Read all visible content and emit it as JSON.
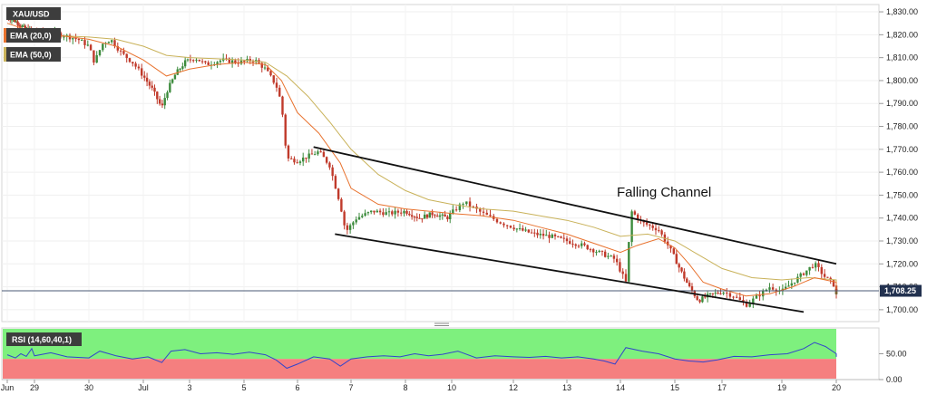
{
  "chart_data": [
    {
      "type": "candlestick",
      "title": "XAU/USD",
      "indicators": [
        {
          "name": "EMA (20,0)",
          "color": "#e8722e"
        },
        {
          "name": "EMA (50,0)",
          "color": "#c9b25a"
        }
      ],
      "x_labels": [
        "Jun",
        "29",
        "30",
        "Jul",
        "3",
        "5",
        "6",
        "7",
        "8",
        "10",
        "12",
        "13",
        "14",
        "15",
        "17",
        "19",
        "20"
      ],
      "y_ticks": [
        "1,830.00",
        "1,820.00",
        "1,810.00",
        "1,800.00",
        "1,790.00",
        "1,780.00",
        "1,770.00",
        "1,760.00",
        "1,750.00",
        "1,740.00",
        "1,730.00",
        "1,720.00",
        "1,710.00",
        "1,700.00"
      ],
      "ylim": [
        1696,
        1832
      ],
      "current_price": {
        "label": "1,708.25",
        "value": 1708.25
      },
      "annotations": [
        {
          "text": "Falling Channel"
        }
      ],
      "channel": {
        "upper": [
          [
            6.3,
            1771
          ],
          [
            16.0,
            1720
          ]
        ],
        "lower": [
          [
            6.7,
            1733
          ],
          [
            15.4,
            1699
          ]
        ]
      },
      "close_path": [
        [
          0.0,
          1828
        ],
        [
          0.3,
          1826
        ],
        [
          0.5,
          1824
        ],
        [
          0.7,
          1822
        ],
        [
          0.9,
          1822
        ],
        [
          1.2,
          1821
        ],
        [
          1.5,
          1820
        ],
        [
          1.8,
          1818
        ],
        [
          2.0,
          1815
        ],
        [
          2.1,
          1808
        ],
        [
          2.25,
          1816
        ],
        [
          2.4,
          1818
        ],
        [
          2.6,
          1812
        ],
        [
          2.8,
          1808
        ],
        [
          3.0,
          1802
        ],
        [
          3.2,
          1796
        ],
        [
          3.4,
          1788
        ],
        [
          3.5,
          1795
        ],
        [
          3.7,
          1803
        ],
        [
          3.9,
          1808
        ],
        [
          4.1,
          1810
        ],
        [
          4.3,
          1807
        ],
        [
          4.6,
          1809
        ],
        [
          4.9,
          1808
        ],
        [
          5.2,
          1809
        ],
        [
          5.4,
          1805
        ],
        [
          5.6,
          1798
        ],
        [
          5.7,
          1790
        ],
        [
          5.8,
          1766
        ],
        [
          6.0,
          1765
        ],
        [
          6.2,
          1767
        ],
        [
          6.4,
          1769
        ],
        [
          6.6,
          1763
        ],
        [
          6.8,
          1746
        ],
        [
          6.9,
          1734
        ],
        [
          7.1,
          1740
        ],
        [
          7.4,
          1743
        ],
        [
          7.7,
          1742
        ],
        [
          8.0,
          1743
        ],
        [
          8.3,
          1740
        ],
        [
          8.6,
          1742
        ],
        [
          8.9,
          1740
        ],
        [
          9.2,
          1747
        ],
        [
          9.5,
          1742
        ],
        [
          9.8,
          1738
        ],
        [
          10.1,
          1735
        ],
        [
          10.4,
          1733
        ],
        [
          10.7,
          1732
        ],
        [
          11.0,
          1730
        ],
        [
          11.3,
          1728
        ],
        [
          11.6,
          1725
        ],
        [
          11.9,
          1722
        ],
        [
          12.1,
          1712
        ],
        [
          12.2,
          1743
        ],
        [
          12.4,
          1738
        ],
        [
          12.7,
          1735
        ],
        [
          12.9,
          1727
        ],
        [
          13.1,
          1718
        ],
        [
          13.3,
          1710
        ],
        [
          13.5,
          1704
        ],
        [
          13.7,
          1706
        ],
        [
          14.0,
          1708
        ],
        [
          14.2,
          1706
        ],
        [
          14.4,
          1702
        ],
        [
          14.6,
          1706
        ],
        [
          14.8,
          1710
        ],
        [
          15.0,
          1708
        ],
        [
          15.2,
          1712
        ],
        [
          15.4,
          1716
        ],
        [
          15.6,
          1720
        ],
        [
          15.8,
          1714
        ],
        [
          16.0,
          1710
        ],
        [
          16.2,
          1708
        ],
        [
          16.4,
          1707.5
        ],
        [
          16.6,
          1708.25
        ]
      ],
      "ema20_path": [
        [
          0.0,
          1825
        ],
        [
          1.0,
          1821
        ],
        [
          2.0,
          1818
        ],
        [
          2.5,
          1815
        ],
        [
          3.0,
          1809
        ],
        [
          3.5,
          1802
        ],
        [
          4.0,
          1805
        ],
        [
          4.5,
          1807
        ],
        [
          5.0,
          1808
        ],
        [
          5.4,
          1807
        ],
        [
          5.7,
          1800
        ],
        [
          6.0,
          1786
        ],
        [
          6.4,
          1777
        ],
        [
          6.8,
          1764
        ],
        [
          7.0,
          1753
        ],
        [
          7.5,
          1746
        ],
        [
          8.0,
          1744
        ],
        [
          8.5,
          1743
        ],
        [
          9.0,
          1742
        ],
        [
          9.5,
          1741
        ],
        [
          10.0,
          1739
        ],
        [
          10.5,
          1736
        ],
        [
          11.0,
          1733
        ],
        [
          11.5,
          1729
        ],
        [
          12.0,
          1725
        ],
        [
          12.3,
          1728
        ],
        [
          12.7,
          1731
        ],
        [
          13.0,
          1727
        ],
        [
          13.3,
          1720
        ],
        [
          13.6,
          1712
        ],
        [
          14.0,
          1709
        ],
        [
          14.4,
          1706
        ],
        [
          14.8,
          1707
        ],
        [
          15.2,
          1710
        ],
        [
          15.6,
          1714
        ],
        [
          16.0,
          1712
        ],
        [
          16.4,
          1710
        ],
        [
          16.6,
          1709
        ]
      ],
      "ema50_path": [
        [
          0.0,
          1822
        ],
        [
          1.0,
          1820
        ],
        [
          2.0,
          1819
        ],
        [
          2.5,
          1818
        ],
        [
          3.0,
          1815
        ],
        [
          3.5,
          1811
        ],
        [
          4.0,
          1810
        ],
        [
          4.5,
          1809.5
        ],
        [
          5.0,
          1809
        ],
        [
          5.4,
          1808
        ],
        [
          5.8,
          1802
        ],
        [
          6.2,
          1793
        ],
        [
          6.6,
          1782
        ],
        [
          7.0,
          1770
        ],
        [
          7.5,
          1759
        ],
        [
          8.0,
          1752
        ],
        [
          8.5,
          1748
        ],
        [
          9.0,
          1746
        ],
        [
          9.5,
          1744
        ],
        [
          10.0,
          1743
        ],
        [
          10.5,
          1741
        ],
        [
          11.0,
          1739
        ],
        [
          11.5,
          1736
        ],
        [
          12.0,
          1732
        ],
        [
          12.5,
          1733
        ],
        [
          13.0,
          1730
        ],
        [
          13.5,
          1724
        ],
        [
          14.0,
          1718
        ],
        [
          14.5,
          1714
        ],
        [
          15.0,
          1713
        ],
        [
          15.5,
          1714
        ],
        [
          16.0,
          1713
        ],
        [
          16.6,
          1712
        ]
      ]
    },
    {
      "type": "line",
      "title": "RSI (14,60,40,1)",
      "y_ticks": [
        "50.00",
        "0.00"
      ],
      "ylim": [
        0,
        100
      ],
      "zones": [
        {
          "from": 40,
          "to": 100,
          "color": "#7ef07e"
        },
        {
          "from": 0,
          "to": 40,
          "color": "#f57f7f"
        }
      ],
      "series": [
        {
          "color": "#3344cc",
          "points": [
            [
              0.0,
              48
            ],
            [
              0.3,
              42
            ],
            [
              0.5,
              50
            ],
            [
              0.7,
              45
            ],
            [
              0.9,
              60
            ],
            [
              1.0,
              46
            ],
            [
              1.3,
              52
            ],
            [
              1.6,
              44
            ],
            [
              2.0,
              42
            ],
            [
              2.2,
              55
            ],
            [
              2.5,
              46
            ],
            [
              2.8,
              40
            ],
            [
              3.1,
              44
            ],
            [
              3.4,
              33
            ],
            [
              3.6,
              55
            ],
            [
              3.9,
              58
            ],
            [
              4.2,
              50
            ],
            [
              4.5,
              52
            ],
            [
              4.8,
              49
            ],
            [
              5.1,
              53
            ],
            [
              5.4,
              48
            ],
            [
              5.6,
              38
            ],
            [
              5.8,
              22
            ],
            [
              6.0,
              30
            ],
            [
              6.3,
              44
            ],
            [
              6.6,
              40
            ],
            [
              6.8,
              26
            ],
            [
              7.0,
              40
            ],
            [
              7.3,
              44
            ],
            [
              7.6,
              46
            ],
            [
              7.9,
              44
            ],
            [
              8.2,
              50
            ],
            [
              8.5,
              46
            ],
            [
              8.8,
              49
            ],
            [
              9.1,
              55
            ],
            [
              9.4,
              42
            ],
            [
              9.7,
              46
            ],
            [
              10.0,
              44
            ],
            [
              10.3,
              43
            ],
            [
              10.6,
              45
            ],
            [
              10.9,
              42
            ],
            [
              11.2,
              44
            ],
            [
              11.5,
              40
            ],
            [
              11.7,
              36
            ],
            [
              11.9,
              30
            ],
            [
              12.1,
              62
            ],
            [
              12.4,
              55
            ],
            [
              12.7,
              50
            ],
            [
              13.0,
              40
            ],
            [
              13.3,
              36
            ],
            [
              13.6,
              34
            ],
            [
              13.9,
              38
            ],
            [
              14.2,
              45
            ],
            [
              14.5,
              44
            ],
            [
              14.8,
              48
            ],
            [
              15.1,
              50
            ],
            [
              15.4,
              60
            ],
            [
              15.6,
              72
            ],
            [
              15.8,
              64
            ],
            [
              16.0,
              50
            ],
            [
              16.3,
              44
            ],
            [
              16.6,
              48
            ]
          ]
        }
      ],
      "highlight_box": {
        "from": 16.0,
        "to": 16.7,
        "low": 36,
        "high": 58
      }
    }
  ]
}
